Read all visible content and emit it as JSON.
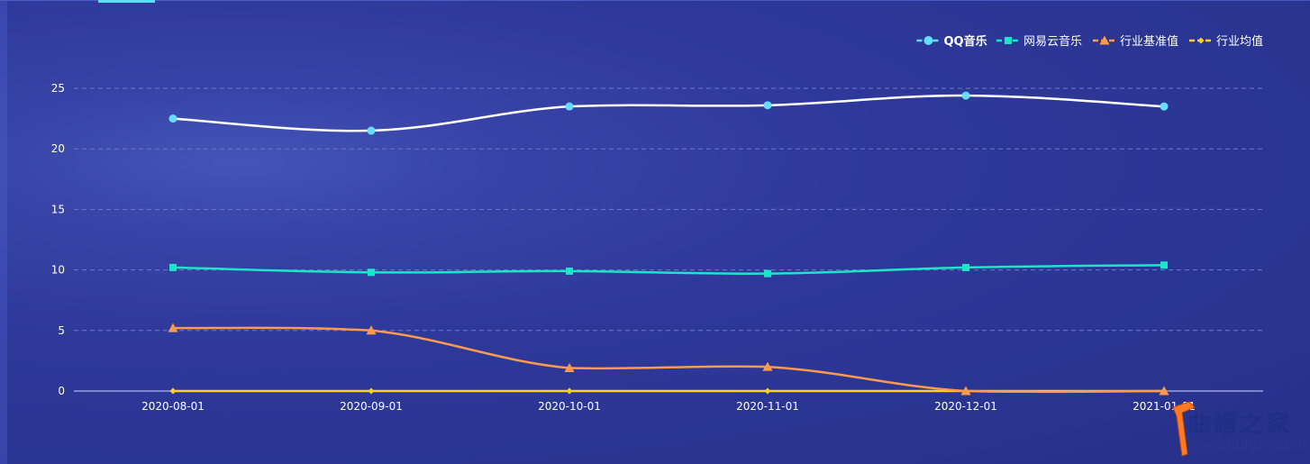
{
  "chart_data": {
    "type": "line",
    "categories": [
      "2020-08-01",
      "2020-09-01",
      "2020-10-01",
      "2020-11-01",
      "2020-12-01",
      "2021-01-01"
    ],
    "series": [
      {
        "name": "QQ音乐",
        "values": [
          22.5,
          21.5,
          23.5,
          23.6,
          24.4,
          23.5
        ],
        "color": "#ffffff",
        "symbol": "circle",
        "symbol_color": "#66dcff"
      },
      {
        "name": "网易云音乐",
        "values": [
          10.2,
          9.8,
          9.9,
          9.7,
          10.2,
          10.4
        ],
        "color": "#1de5c8",
        "symbol": "square",
        "symbol_color": "#1de5c8"
      },
      {
        "name": "行业基准值",
        "values": [
          5.2,
          5.0,
          1.9,
          2.0,
          0,
          0
        ],
        "color": "#ff9a4c",
        "symbol": "triangle",
        "symbol_color": "#ff9a4c"
      },
      {
        "name": "行业均值",
        "values": [
          0,
          0,
          0,
          0,
          0,
          0
        ],
        "color": "#ffd02a",
        "symbol": "diamond",
        "symbol_color": "#ffd02a"
      }
    ],
    "y_ticks": [
      0,
      5,
      10,
      15,
      20,
      25
    ],
    "ylim": [
      0,
      25
    ],
    "title": "",
    "xlabel": "",
    "ylabel": "",
    "grid": true,
    "legend_position": "top-right"
  },
  "watermark": {
    "name": "曲譜之家",
    "url": "www.hpppw.com"
  }
}
